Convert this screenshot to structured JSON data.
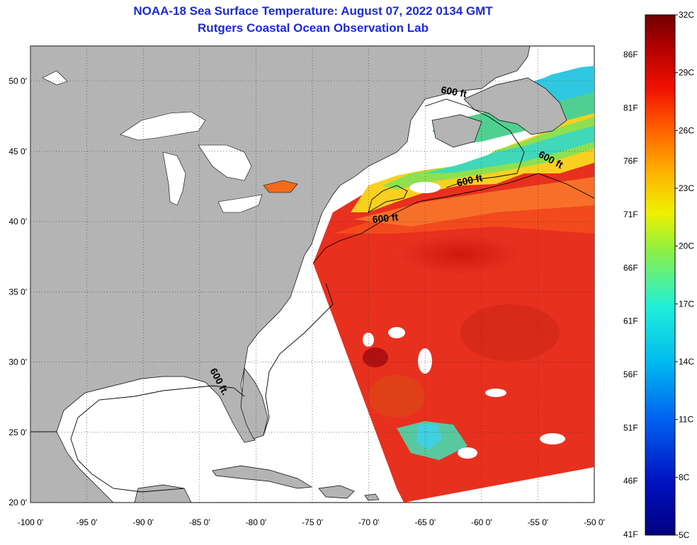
{
  "header": {
    "title": "NOAA-18 Sea Surface Temperature:  August 07, 2022 0134 GMT",
    "subtitle": "Rutgers Coastal Ocean Observation Lab"
  },
  "map": {
    "lat_labels": [
      "50 0'",
      "45 0'",
      "40 0'",
      "35 0'",
      "30 0'",
      "25 0'",
      "20 0'"
    ],
    "lat_values": [
      50,
      45,
      40,
      35,
      30,
      25,
      20
    ],
    "lon_labels": [
      "-100 0'",
      "-95 0'",
      "-90 0'",
      "-85 0'",
      "-80 0'",
      "-75 0'",
      "-70 0'",
      "-65 0'",
      "-60 0'",
      "-55 0'",
      "-50 0'"
    ],
    "lon_values": [
      -100,
      -95,
      -90,
      -85,
      -80,
      -75,
      -70,
      -65,
      -60,
      -55,
      -50
    ],
    "extent": {
      "lon": [
        -100,
        -50
      ],
      "lat": [
        20,
        52.5
      ]
    },
    "contour_label": "600 ft",
    "contour_labels": [
      "600 ft",
      "600 ft",
      "600 ft",
      "600 ft",
      "600 ft."
    ],
    "colors": {
      "land": "#b4b4b4",
      "no_data": "#ffffff",
      "warm": "#e62a1e",
      "mid": "#f8c81a",
      "cool": "#3fd3b8",
      "grid": "#303030"
    }
  },
  "colorbar": {
    "celsius": [
      "32C",
      "29C",
      "26C",
      "23C",
      "20C",
      "17C",
      "14C",
      "11C",
      "8C",
      "5C"
    ],
    "fahrenheit": [
      "86F",
      "81F",
      "76F",
      "71F",
      "66F",
      "61F",
      "56F",
      "51F",
      "46F",
      "41F"
    ],
    "colors": [
      "#6e0000",
      "#c80000",
      "#ff3000",
      "#ff8c00",
      "#ffe000",
      "#b0f020",
      "#30e8c0",
      "#00b8f0",
      "#0060e0",
      "#0010b0",
      "#000080"
    ]
  }
}
